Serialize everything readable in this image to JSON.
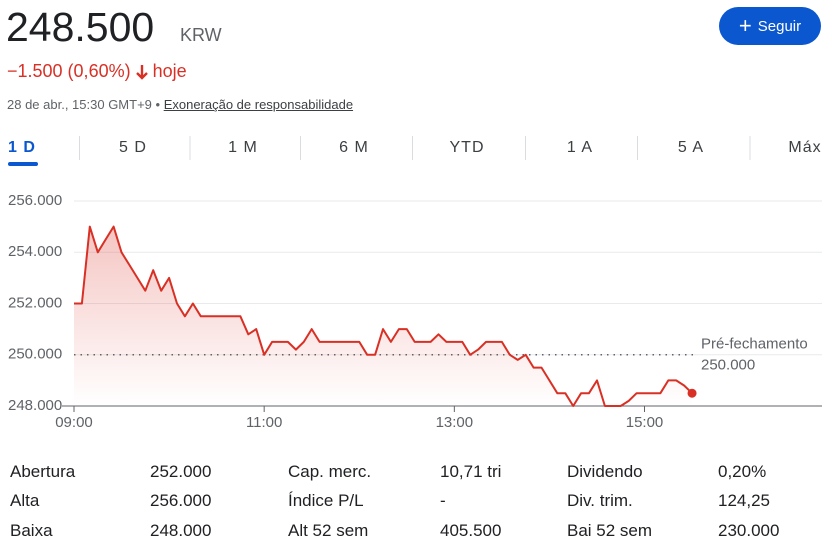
{
  "quote": {
    "price": "248.500",
    "currency": "KRW",
    "change": "−1.500 (0,60%)",
    "period": "hoje",
    "timestamp": "28 de abr., 15:30 GMT+9 •",
    "disclaimer": "Exoneração de responsabilidade",
    "follow": "Seguir"
  },
  "tabs": [
    "1 D",
    "5 D",
    "1 M",
    "6 M",
    "YTD",
    "1 A",
    "5 A",
    "Máx"
  ],
  "chart_data": {
    "type": "line",
    "color": "#d93025",
    "x": [
      "09:00",
      "09:05",
      "09:10",
      "09:15",
      "09:20",
      "09:25",
      "09:30",
      "09:35",
      "09:40",
      "09:45",
      "09:50",
      "09:55",
      "10:00",
      "10:05",
      "10:10",
      "10:15",
      "10:20",
      "10:25",
      "10:30",
      "10:35",
      "10:40",
      "10:45",
      "10:50",
      "10:55",
      "11:00",
      "11:05",
      "11:10",
      "11:15",
      "11:20",
      "11:25",
      "11:30",
      "11:35",
      "11:40",
      "11:45",
      "11:50",
      "11:55",
      "12:00",
      "12:05",
      "12:10",
      "12:15",
      "12:20",
      "12:25",
      "12:30",
      "12:35",
      "12:40",
      "12:45",
      "12:50",
      "12:55",
      "13:00",
      "13:05",
      "13:10",
      "13:15",
      "13:20",
      "13:25",
      "13:30",
      "13:35",
      "13:40",
      "13:45",
      "13:50",
      "13:55",
      "14:00",
      "14:05",
      "14:10",
      "14:15",
      "14:20",
      "14:25",
      "14:30",
      "14:35",
      "14:40",
      "14:45",
      "14:50",
      "14:55",
      "15:00",
      "15:05",
      "15:10",
      "15:15",
      "15:20",
      "15:25",
      "15:30"
    ],
    "series": [
      {
        "values": [
          252000,
          252000,
          255000,
          254000,
          254500,
          255000,
          254000,
          253500,
          253000,
          252500,
          253300,
          252500,
          253000,
          252000,
          251500,
          252000,
          251500,
          251500,
          251500,
          251500,
          251500,
          251500,
          250800,
          251000,
          250000,
          250500,
          250500,
          250500,
          250200,
          250500,
          251000,
          250500,
          250500,
          250500,
          250500,
          250500,
          250500,
          250000,
          250000,
          251000,
          250500,
          251000,
          251000,
          250500,
          250500,
          250500,
          250800,
          250500,
          250500,
          250500,
          250000,
          250200,
          250500,
          250500,
          250500,
          250000,
          249800,
          250000,
          249500,
          249500,
          249000,
          248500,
          248500,
          248000,
          248500,
          248500,
          249000,
          248000,
          248000,
          248000,
          248200,
          248500,
          248500,
          248500,
          248500,
          249000,
          249000,
          248800,
          248500
        ]
      }
    ],
    "xlim": [
      "09:00",
      "16:52"
    ],
    "xticks": [
      "09:00",
      "11:00",
      "13:00",
      "15:00"
    ],
    "ylim": [
      248000,
      256000
    ],
    "yticks": [
      {
        "value": 248000,
        "label": "248.000"
      },
      {
        "value": 250000,
        "label": "250.000"
      },
      {
        "value": 252000,
        "label": "252.000"
      },
      {
        "value": 254000,
        "label": "254.000"
      },
      {
        "value": 256000,
        "label": "256.000"
      }
    ],
    "grid": true,
    "previous_close": {
      "name": "Pré-fechamento",
      "value": 250000,
      "label": "250.000"
    }
  },
  "stats": [
    [
      "Abertura",
      "252.000"
    ],
    [
      "Alta",
      "256.000"
    ],
    [
      "Baixa",
      "248.000"
    ],
    [
      "Cap. merc.",
      "10,71 tri"
    ],
    [
      "Índice P/L",
      "-"
    ],
    [
      "Alt 52 sem",
      "405.500"
    ],
    [
      "Dividendo",
      "0,20%"
    ],
    [
      "Div. trim.",
      "124,25"
    ],
    [
      "Bai 52 sem",
      "230.000"
    ]
  ]
}
